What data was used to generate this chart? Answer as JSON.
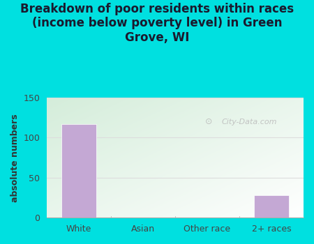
{
  "categories": [
    "White",
    "Asian",
    "Other race",
    "2+ races"
  ],
  "values": [
    117,
    0,
    0,
    28
  ],
  "bar_color": "#c4a8d4",
  "title": "Breakdown of poor residents within races\n(income below poverty level) in Green\nGrove, WI",
  "ylabel": "absolute numbers",
  "ylim": [
    0,
    150
  ],
  "yticks": [
    0,
    50,
    100,
    150
  ],
  "outer_bg": "#00e0e0",
  "plot_bg_topleft": "#d4edda",
  "plot_bg_bottomright": "#f8fff8",
  "watermark": "City-Data.com",
  "title_fontsize": 12,
  "ylabel_fontsize": 9,
  "tick_fontsize": 9,
  "bar_width": 0.55,
  "grid_color": "#dddddd"
}
